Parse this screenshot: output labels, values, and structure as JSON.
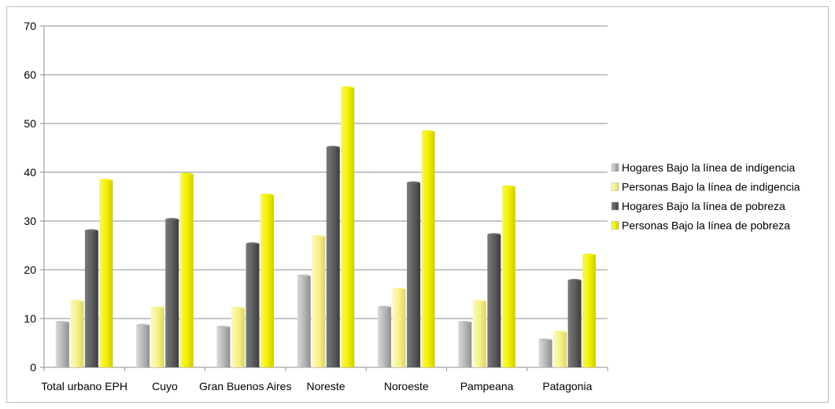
{
  "chart_data": {
    "type": "bar",
    "categories": [
      "Total urbano EPH",
      "Cuyo",
      "Gran Buenos Aires",
      "Noreste",
      "Noroeste",
      "Pampeana",
      "Patagonia"
    ],
    "series": [
      {
        "name": "Hogares Bajo la línea de indigencia",
        "values": [
          9.2,
          8.6,
          8.2,
          18.7,
          12.3,
          9.2,
          5.6
        ],
        "color": "#b8b8b8"
      },
      {
        "name": "Personas Bajo la línea de indigencia",
        "values": [
          13.5,
          12.2,
          12.1,
          26.8,
          16.0,
          13.5,
          7.2
        ],
        "color": "#f6f28a"
      },
      {
        "name": "Hogares Bajo la línea de pobreza",
        "values": [
          28.0,
          30.3,
          25.3,
          45.1,
          37.8,
          27.2,
          17.8
        ],
        "color": "#5f5f5f"
      },
      {
        "name": "Personas Bajo la línea de pobreza",
        "values": [
          38.3,
          39.6,
          35.3,
          57.3,
          48.3,
          37.0,
          23.0
        ],
        "color": "#f3f000"
      }
    ],
    "ylim": [
      0,
      70
    ],
    "yticks": [
      0,
      10,
      20,
      30,
      40,
      50,
      60,
      70
    ],
    "grid": true,
    "legend": "right"
  }
}
